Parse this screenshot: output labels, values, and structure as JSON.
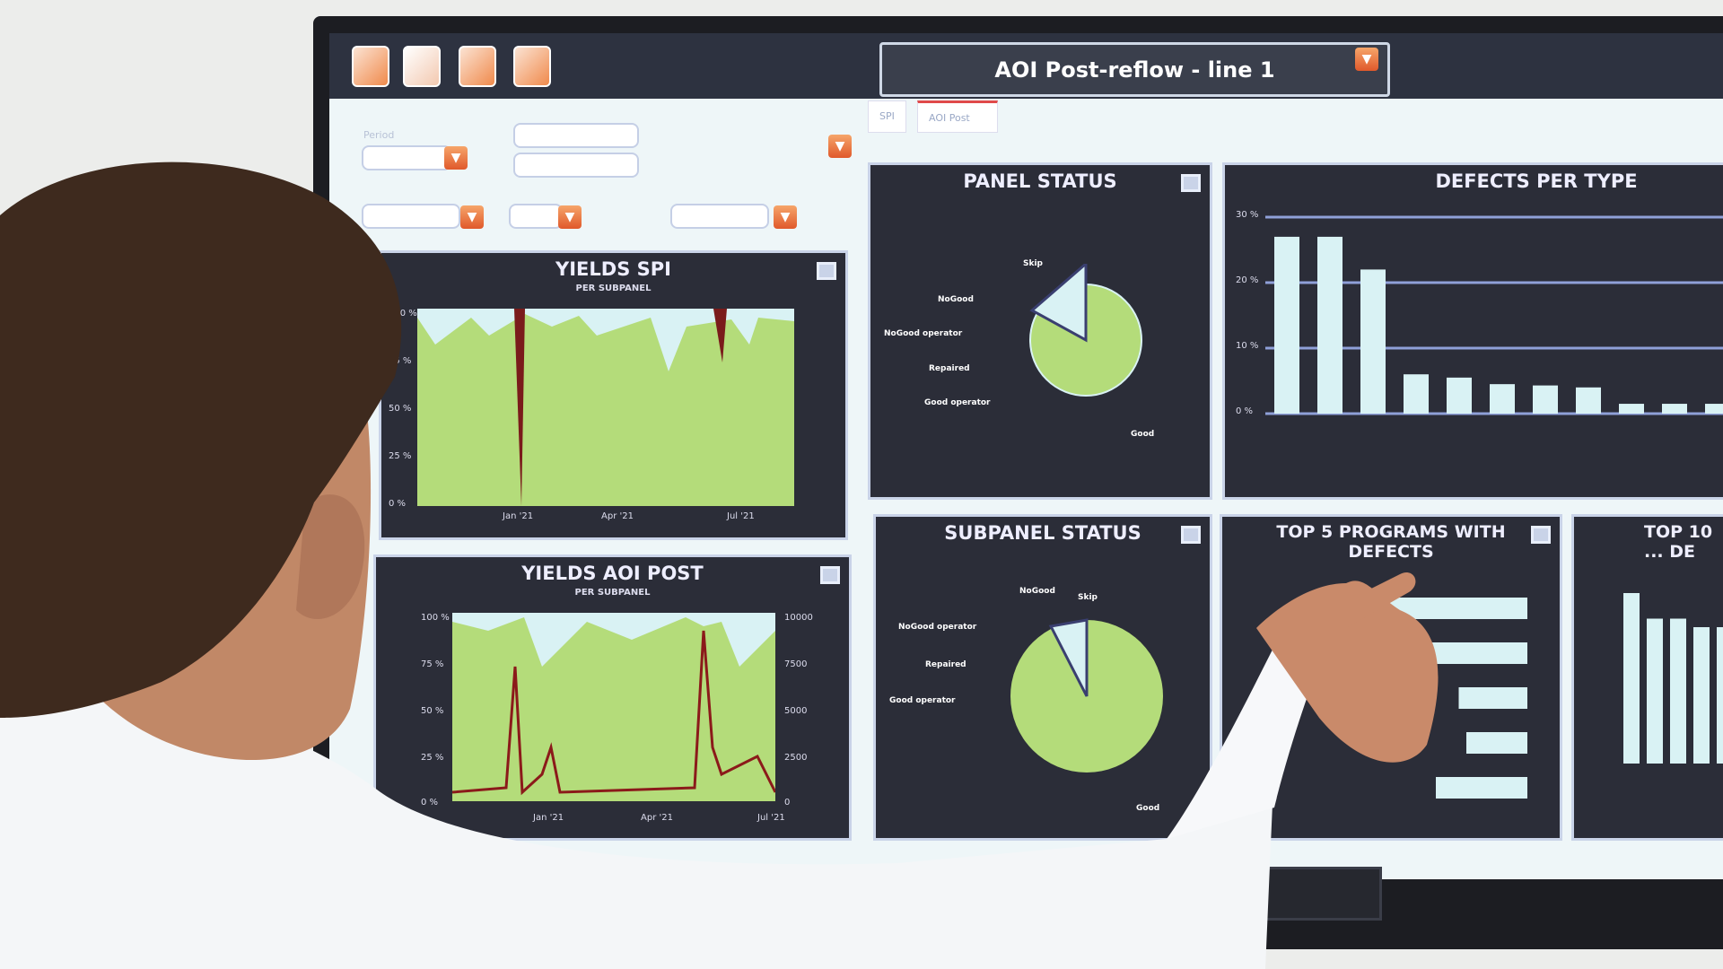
{
  "dashboard": {
    "title": "AOI Post-reflow - line 1",
    "tabs": [
      {
        "label": "SPI"
      },
      {
        "label": "AOI Post"
      }
    ],
    "filters": {
      "period_label": "Period"
    },
    "panels": {
      "yields_spi": {
        "title": "YIELDS SPI",
        "subtitle": "PER SUBPANEL",
        "y_ticks": [
          "100 %",
          "75 %",
          "50 %",
          "25 %",
          "0 %"
        ],
        "x_ticks": [
          "Jan '21",
          "Apr '21",
          "Jul '21"
        ]
      },
      "yields_aoi": {
        "title": "YIELDS AOI POST",
        "subtitle": "PER SUBPANEL",
        "y_ticks": [
          "100 %",
          "75 %",
          "50 %",
          "25 %",
          "0 %"
        ],
        "y2_ticks": [
          "10000",
          "7500",
          "5000",
          "2500",
          "0"
        ],
        "x_ticks": [
          "Jan '21",
          "Apr '21",
          "Jul '21"
        ]
      },
      "panel_status": {
        "title": "PANEL STATUS",
        "labels": [
          "Skip",
          "NoGood",
          "NoGood operator",
          "Repaired",
          "Good operator",
          "Good"
        ]
      },
      "defects_per_type": {
        "title": "DEFECTS PER TYPE",
        "y_ticks": [
          "30 %",
          "20 %",
          "10 %",
          "0 %"
        ],
        "values_pct": [
          27,
          27,
          22,
          6,
          5.5,
          4.5,
          4.3,
          4,
          1.5,
          1.5,
          1.5
        ]
      },
      "subpanel_status": {
        "title": "SUBPANEL STATUS",
        "labels": [
          "Skip",
          "NoGood",
          "NoGood operator",
          "Repaired",
          "Good operator",
          "Good"
        ]
      },
      "top5": {
        "title": "TOP 5 PROGRAMS WITH DEFECTS",
        "values_rel": [
          1.0,
          0.8,
          0.45,
          0.4,
          0.6
        ]
      },
      "top10": {
        "title": "TOP 10 ... DE",
        "values_rel": [
          1.0,
          0.85,
          0.85,
          0.8,
          0.8
        ]
      }
    },
    "colors": {
      "good": "#b4dc7a",
      "accent": "#e8672f",
      "panel_bg": "#2b2d38",
      "nogood": "#8b1a1a"
    }
  }
}
